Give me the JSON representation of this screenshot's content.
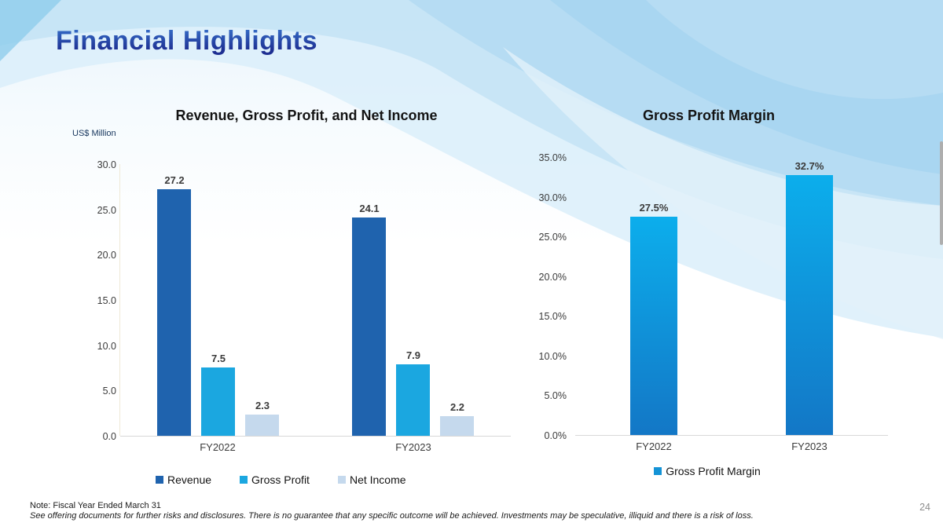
{
  "slide": {
    "title": "Financial Highlights",
    "page_number": "24",
    "note_line1": "Note: Fiscal Year Ended March 31",
    "note_line2": "See offering documents for further risks and disclosures. There is no guarantee that any specific outcome will be achieved. Investments may be speculative, illiquid and there is a risk of loss."
  },
  "colors": {
    "revenue": "#1F63AE",
    "gross_profit": "#1BA7E0",
    "net_income": "#C5D9ED",
    "margin_gradient_top": "#0CAEEC",
    "margin_gradient_bottom": "#1377C6",
    "title_text": "#24369A",
    "background_accent": "#C2E2F5"
  },
  "chart_data": [
    {
      "type": "bar",
      "title": "Revenue, Gross Profit, and Net Income",
      "ylabel": "US$ Million",
      "xlabel": "",
      "categories": [
        "FY2022",
        "FY2023"
      ],
      "series": [
        {
          "name": "Revenue",
          "values": [
            27.2,
            24.1
          ],
          "labels": [
            "27.2",
            "24.1"
          ],
          "color": "#1F63AE"
        },
        {
          "name": "Gross Profit",
          "values": [
            7.5,
            7.9
          ],
          "labels": [
            "7.5",
            "7.9"
          ],
          "color": "#1BA7E0"
        },
        {
          "name": "Net Income",
          "values": [
            2.3,
            2.2
          ],
          "labels": [
            "2.3",
            "2.2"
          ],
          "color": "#C5D9ED"
        }
      ],
      "ylim": [
        0,
        30
      ],
      "ytick_labels": [
        "0.0",
        "5.0",
        "10.0",
        "15.0",
        "20.0",
        "25.0",
        "30.0"
      ],
      "legend_position": "bottom",
      "grid": false
    },
    {
      "type": "bar",
      "title": "Gross Profit Margin",
      "ylabel": "",
      "xlabel": "",
      "categories": [
        "FY2022",
        "FY2023"
      ],
      "series": [
        {
          "name": "Gross Profit Margin",
          "values": [
            27.5,
            32.7
          ],
          "labels": [
            "27.5%",
            "32.7%"
          ],
          "color": "#1493D6",
          "color_gradient": [
            "#0CAEEC",
            "#1377C6"
          ]
        }
      ],
      "ylim": [
        0,
        35
      ],
      "ytick_labels": [
        "0.0%",
        "5.0%",
        "10.0%",
        "15.0%",
        "20.0%",
        "25.0%",
        "30.0%",
        "35.0%"
      ],
      "legend_position": "bottom",
      "grid": false
    }
  ]
}
